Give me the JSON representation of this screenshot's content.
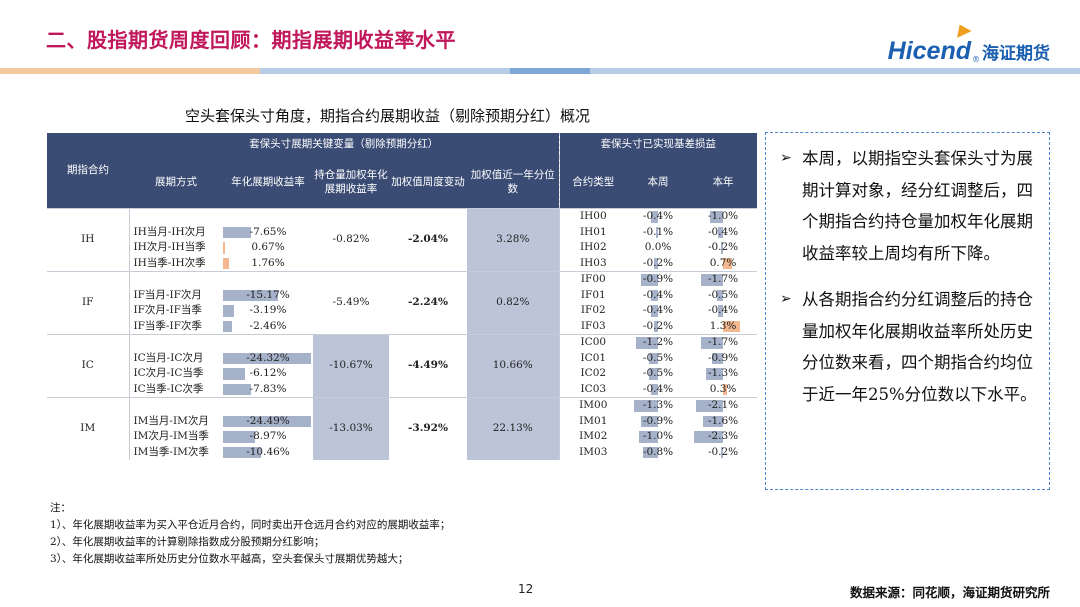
{
  "header": {
    "title": "二、股指期货周度回顾：期指展期收益率水平",
    "logo_text": "Hicend",
    "logo_reg": "®",
    "logo_cn": "海证期货"
  },
  "colors": {
    "title": "#c0185a",
    "header_bg": "#3a4b74",
    "neg_bar": "#a6b2c9",
    "pos_bar": "#f4b890",
    "col_fill": "#bcc5d8",
    "panel_border": "#4a86c8"
  },
  "subtitle": "空头套保头寸角度，期指合约展期收益（剔除预期分红）概况",
  "table": {
    "group_headers": {
      "left": "套保头寸展期关键变量（剔除预期分红）",
      "right": "套保头寸已实现基差损益"
    },
    "headers": {
      "contract": "期指合约",
      "method": "展期方式",
      "annual": "年化展期收益率",
      "weighted": "持仓量加权年化展期收益率",
      "weekly": "加权值周度变动",
      "pct": "加权值近一年分位数",
      "type": "合约类型",
      "week": "本周",
      "year": "本年"
    },
    "groups": [
      {
        "name": "IH",
        "weighted": "-0.82%",
        "weekly": "-2.04%",
        "pct": "3.28%",
        "rows": [
          {
            "method": "IH当月-IH次月",
            "annual": "-7.65%",
            "annual_v": -7.65
          },
          {
            "method": "IH次月-IH当季",
            "annual": "0.67%",
            "annual_v": 0.67
          },
          {
            "method": "IH当季-IH次季",
            "annual": "1.76%",
            "annual_v": 1.76
          }
        ],
        "contracts": [
          {
            "type": "IH00",
            "week": "-0.4%",
            "week_v": -0.4,
            "year": "-1.0%",
            "year_v": -1.0
          },
          {
            "type": "IH01",
            "week": "-0.1%",
            "week_v": -0.1,
            "year": "-0.4%",
            "year_v": -0.4
          },
          {
            "type": "IH02",
            "week": "0.0%",
            "week_v": 0.0,
            "year": "-0.2%",
            "year_v": -0.2
          },
          {
            "type": "IH03",
            "week": "-0.2%",
            "week_v": -0.2,
            "year": "0.7%",
            "year_v": 0.7
          }
        ]
      },
      {
        "name": "IF",
        "weighted": "-5.49%",
        "weekly": "-2.24%",
        "pct": "0.82%",
        "rows": [
          {
            "method": "IF当月-IF次月",
            "annual": "-15.17%",
            "annual_v": -15.17
          },
          {
            "method": "IF次月-IF当季",
            "annual": "-3.19%",
            "annual_v": -3.19
          },
          {
            "method": "IF当季-IF次季",
            "annual": "-2.46%",
            "annual_v": -2.46
          }
        ],
        "contracts": [
          {
            "type": "IF00",
            "week": "-0.9%",
            "week_v": -0.9,
            "year": "-1.7%",
            "year_v": -1.7
          },
          {
            "type": "IF01",
            "week": "-0.4%",
            "week_v": -0.4,
            "year": "-0.5%",
            "year_v": -0.5
          },
          {
            "type": "IF02",
            "week": "-0.4%",
            "week_v": -0.4,
            "year": "-0.4%",
            "year_v": -0.4
          },
          {
            "type": "IF03",
            "week": "-0.2%",
            "week_v": -0.2,
            "year": "1.3%",
            "year_v": 1.3
          }
        ]
      },
      {
        "name": "IC",
        "weighted": "-10.67%",
        "weekly": "-4.49%",
        "pct": "10.66%",
        "rows": [
          {
            "method": "IC当月-IC次月",
            "annual": "-24.32%",
            "annual_v": -24.32
          },
          {
            "method": "IC次月-IC当季",
            "annual": "-6.12%",
            "annual_v": -6.12
          },
          {
            "method": "IC当季-IC次季",
            "annual": "-7.83%",
            "annual_v": -7.83
          }
        ],
        "contracts": [
          {
            "type": "IC00",
            "week": "-1.2%",
            "week_v": -1.2,
            "year": "-1.7%",
            "year_v": -1.7
          },
          {
            "type": "IC01",
            "week": "-0.5%",
            "week_v": -0.5,
            "year": "-0.9%",
            "year_v": -0.9
          },
          {
            "type": "IC02",
            "week": "-0.5%",
            "week_v": -0.5,
            "year": "-1.3%",
            "year_v": -1.3
          },
          {
            "type": "IC03",
            "week": "-0.4%",
            "week_v": -0.4,
            "year": "0.3%",
            "year_v": 0.3
          }
        ]
      },
      {
        "name": "IM",
        "weighted": "-13.03%",
        "weekly": "-3.92%",
        "pct": "22.13%",
        "rows": [
          {
            "method": "IM当月-IM次月",
            "annual": "-24.49%",
            "annual_v": -24.49
          },
          {
            "method": "IM次月-IM当季",
            "annual": "-8.97%",
            "annual_v": -8.97
          },
          {
            "method": "IM当季-IM次季",
            "annual": "-10.46%",
            "annual_v": -10.46
          }
        ],
        "contracts": [
          {
            "type": "IM00",
            "week": "-1.3%",
            "week_v": -1.3,
            "year": "-2.1%",
            "year_v": -2.1
          },
          {
            "type": "IM01",
            "week": "-0.9%",
            "week_v": -0.9,
            "year": "-1.6%",
            "year_v": -1.6
          },
          {
            "type": "IM02",
            "week": "-1.0%",
            "week_v": -1.0,
            "year": "-2.3%",
            "year_v": -2.3
          },
          {
            "type": "IM03",
            "week": "-0.8%",
            "week_v": -0.8,
            "year": "-0.2%",
            "year_v": -0.2
          }
        ]
      }
    ]
  },
  "panel": {
    "items": [
      "本周，以期指空头套保头寸为展期计算对象，经分红调整后，四个期指合约持仓量加权年化展期收益率较上周均有所下降。",
      "从各期指合约分红调整后的持仓量加权年化展期收益率所处历史分位数来看，四个期指合约均位于近一年25%分位数以下水平。"
    ]
  },
  "notes": [
    "注：",
    "1）、年化展期收益率为买入平仓近月合约，同时卖出开仓远月合约对应的展期收益率；",
    "2）、年化展期收益率的计算剔除指数成分股预期分红影响；",
    "3）、年化展期收益率所处历史分位数水平越高，空头套保头寸展期优势越大；"
  ],
  "footer": {
    "page": "12",
    "source": "数据来源：同花顺，海证期货研究所"
  }
}
